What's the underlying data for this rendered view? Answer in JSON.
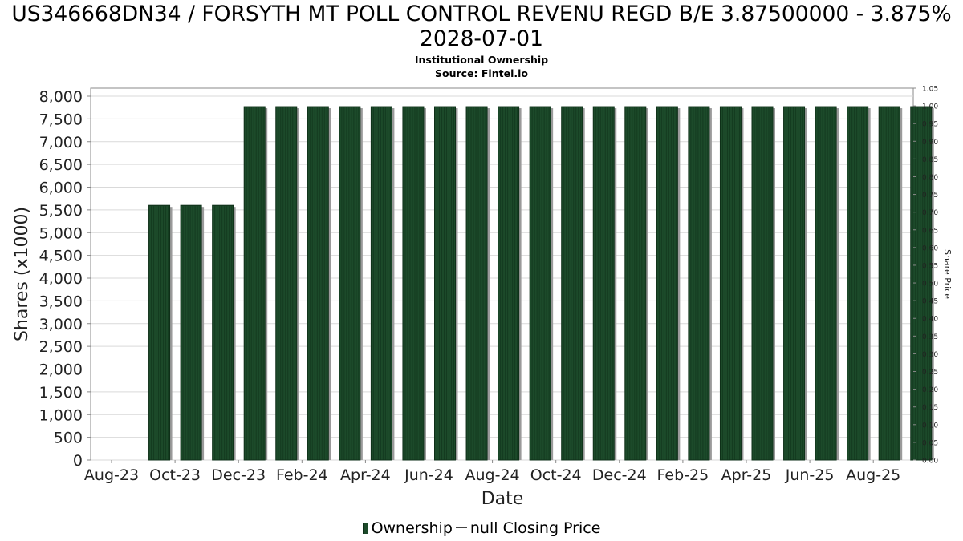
{
  "header": {
    "title": "US346668DN34 / FORSYTH MT POLL CONTROL REVENU REGD B/E 3.87500000 - 3.875% 2028-07-01",
    "subtitle": "Institutional Ownership",
    "source": "Source: Fintel.io"
  },
  "legend": {
    "ownership_label": "Ownership",
    "price_label": "null Closing Price"
  },
  "colors": {
    "bar_fill": "#1c4a2a",
    "bar_stripe": "#0e2f18",
    "bar_shadow": "#9a9a9a",
    "grid": "#d9d9d9",
    "axis": "#888888"
  },
  "chart_data": {
    "type": "bar",
    "xlabel": "Date",
    "ylabel": "Shares (x1000)",
    "y2label": "Share Price",
    "ylim": [
      0,
      8000
    ],
    "y2lim": [
      0,
      1.05
    ],
    "yticks": [
      "0",
      "500",
      "1,000",
      "1,500",
      "2,000",
      "2,500",
      "3,000",
      "3,500",
      "4,000",
      "4,500",
      "5,000",
      "5,500",
      "6,000",
      "6,500",
      "7,000",
      "7,500",
      "8,000"
    ],
    "y2ticks": [
      "0.00",
      "0.05",
      "0.10",
      "0.15",
      "0.20",
      "0.25",
      "0.30",
      "0.35",
      "0.40",
      "0.45",
      "0.50",
      "0.55",
      "0.60",
      "0.65",
      "0.70",
      "0.75",
      "0.80",
      "0.85",
      "0.90",
      "0.95",
      "1.00",
      "1.05"
    ],
    "xticks": [
      "Aug-23",
      "Oct-23",
      "Dec-23",
      "Feb-24",
      "Apr-24",
      "Jun-24",
      "Aug-24",
      "Oct-24",
      "Dec-24",
      "Feb-25",
      "Apr-25",
      "Jun-25",
      "Aug-25"
    ],
    "grid": true,
    "legend_position": "bottom",
    "series": [
      {
        "name": "Ownership",
        "values": [
          0,
          5600,
          5600,
          5600,
          7770,
          7770,
          7770,
          7770,
          7770,
          7770,
          7770,
          7770,
          7770,
          7770,
          7770,
          7770,
          7770,
          7770,
          7770,
          7770,
          7770,
          7770,
          7770,
          7770,
          7770,
          7770
        ]
      },
      {
        "name": "null Closing Price",
        "values": []
      }
    ]
  }
}
